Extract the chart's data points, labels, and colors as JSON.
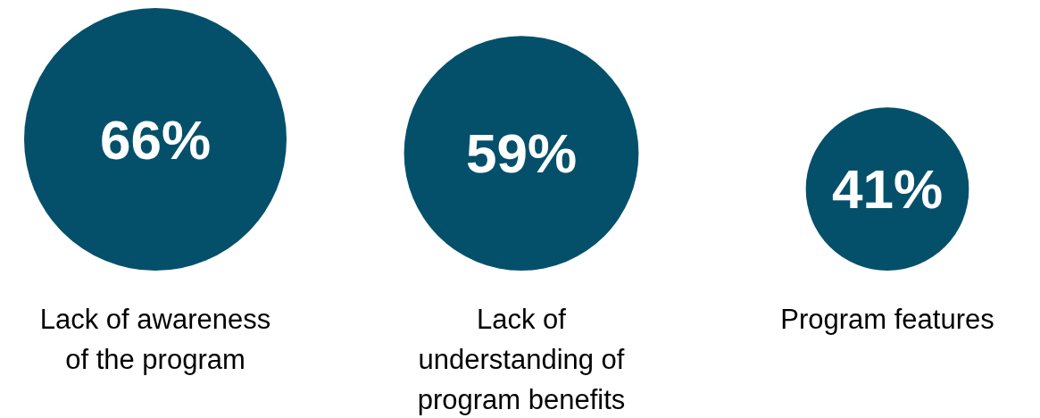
{
  "chart_data": {
    "type": "bubble",
    "categories": [
      "Lack of awareness of the program",
      "Lack of understanding of program benefits",
      "Program features"
    ],
    "values": [
      66,
      59,
      41
    ],
    "sizes": [
      1,
      0.799,
      0.386
    ],
    "value_labels": [
      "66%",
      "59%",
      "41%"
    ],
    "color": "#04506b"
  }
}
